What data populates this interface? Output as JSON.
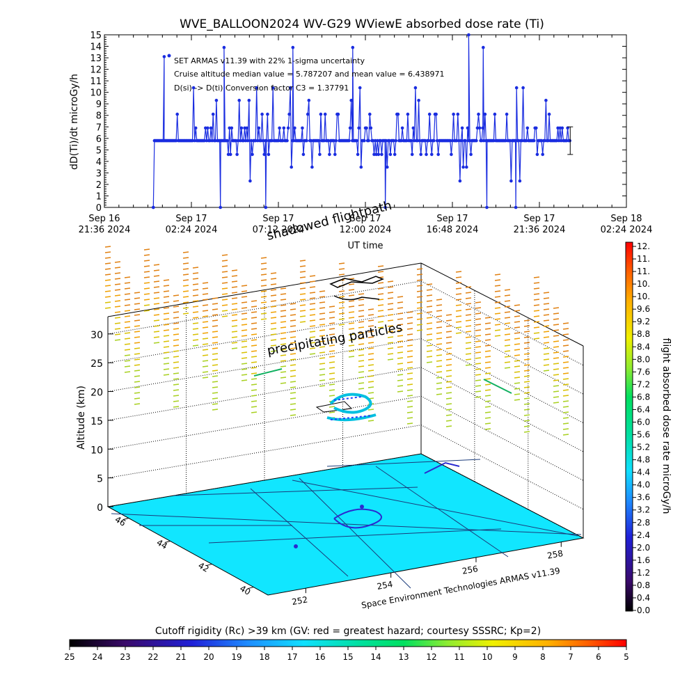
{
  "chart_data": [
    {
      "type": "line",
      "title": "WVE_BALLOON2024 WV-G29 WViewE absorbed dose rate (Ti)",
      "xlabel": "UT time",
      "ylabel": "dD(Ti)/dt microGy/h",
      "ylim": [
        0,
        15
      ],
      "yticks": [
        "0",
        "1",
        "2",
        "3",
        "4",
        "5",
        "6",
        "7",
        "8",
        "9",
        "10",
        "11",
        "12",
        "13",
        "14",
        "15"
      ],
      "xticks": [
        {
          "line1": "Sep 16",
          "line2": "21:36 2024"
        },
        {
          "line1": "Sep 17",
          "line2": "02:24 2024"
        },
        {
          "line1": "Sep 17",
          "line2": "07:12 2024"
        },
        {
          "line1": "Sep 17",
          "line2": "12:00 2024"
        },
        {
          "line1": "Sep 17",
          "line2": "16:48 2024"
        },
        {
          "line1": "Sep 17",
          "line2": "21:36 2024"
        },
        {
          "line1": "Sep 18",
          "line2": "02:24 2024"
        }
      ],
      "xlim_hours": [
        0,
        28.8
      ],
      "color": "#1a2de0",
      "annotations": [
        "SET ARMAS v11.39 with 22% 1-sigma uncertainty",
        "Cruise altitude median value = 5.787207 and mean value = 6.438971",
        "D(si) -> D(ti) Conversion factor C3 = 1.37791"
      ],
      "series": [
        {
          "start_hour": 2.7,
          "end_hour": 25.7,
          "baseline": 5.8,
          "typical_values": [
            4.6,
            5.8,
            6.9,
            5.8,
            8.1,
            5.8,
            4.6,
            3.5,
            5.8,
            6.9,
            9.3,
            5.8,
            2.3,
            5.8,
            6.9,
            5.8,
            8.1,
            10.4,
            5.8,
            4.6
          ],
          "peaks": [
            {
              "hour": 3.3,
              "value": 13.1
            },
            {
              "hour": 6.6,
              "value": 13.9
            },
            {
              "hour": 10.4,
              "value": 13.9
            },
            {
              "hour": 13.7,
              "value": 13.9
            },
            {
              "hour": 20.1,
              "value": 15.0
            },
            {
              "hour": 20.9,
              "value": 13.9
            }
          ],
          "drops_to_zero_hours": [
            2.7,
            6.4,
            8.9,
            15.5,
            21.1,
            22.7
          ]
        }
      ]
    },
    {
      "type": "scatter",
      "subtype": "3d-globe-volume",
      "zlabel": "Altitude (km)",
      "zticks": [
        "0",
        "5",
        "10",
        "15",
        "20",
        "25",
        "30"
      ],
      "zlim": [
        0,
        33
      ],
      "lat_ticks": [
        "40",
        "42",
        "44",
        "46"
      ],
      "lon_ticks": [
        "252",
        "254",
        "256",
        "258"
      ],
      "annotations": [
        "shadowed flightpath",
        "precipitating particles"
      ],
      "credit": "Space Environment Technologies ARMAS v11.39",
      "floor_color": "#11e6ff"
    },
    {
      "type": "heatmap",
      "subtype": "colorbar",
      "label": "flight absorbed dose rate microGy/h",
      "ticks": [
        "0.0",
        "0.4",
        "0.8",
        "1.2",
        "1.6",
        "2.0",
        "2.4",
        "2.8",
        "3.2",
        "3.6",
        "4.0",
        "4.4",
        "4.8",
        "5.2",
        "5.6",
        "6.0",
        "6.4",
        "6.8",
        "7.2",
        "7.6",
        "8.0",
        "8.4",
        "8.8",
        "9.2",
        "9.6",
        "10.",
        "10.",
        "11.",
        "11.",
        "12."
      ]
    },
    {
      "type": "heatmap",
      "subtype": "colorbar",
      "label": "Cutoff rigidity (Rc) >39 km (GV: red = greatest hazard; courtesy SSSRC; Kp=2)",
      "ticks": [
        "25",
        "24",
        "23",
        "22",
        "21",
        "20",
        "19",
        "18",
        "17",
        "16",
        "15",
        "14",
        "13",
        "12",
        "11",
        "10",
        "9",
        "8",
        "7",
        "6",
        "5"
      ]
    }
  ]
}
